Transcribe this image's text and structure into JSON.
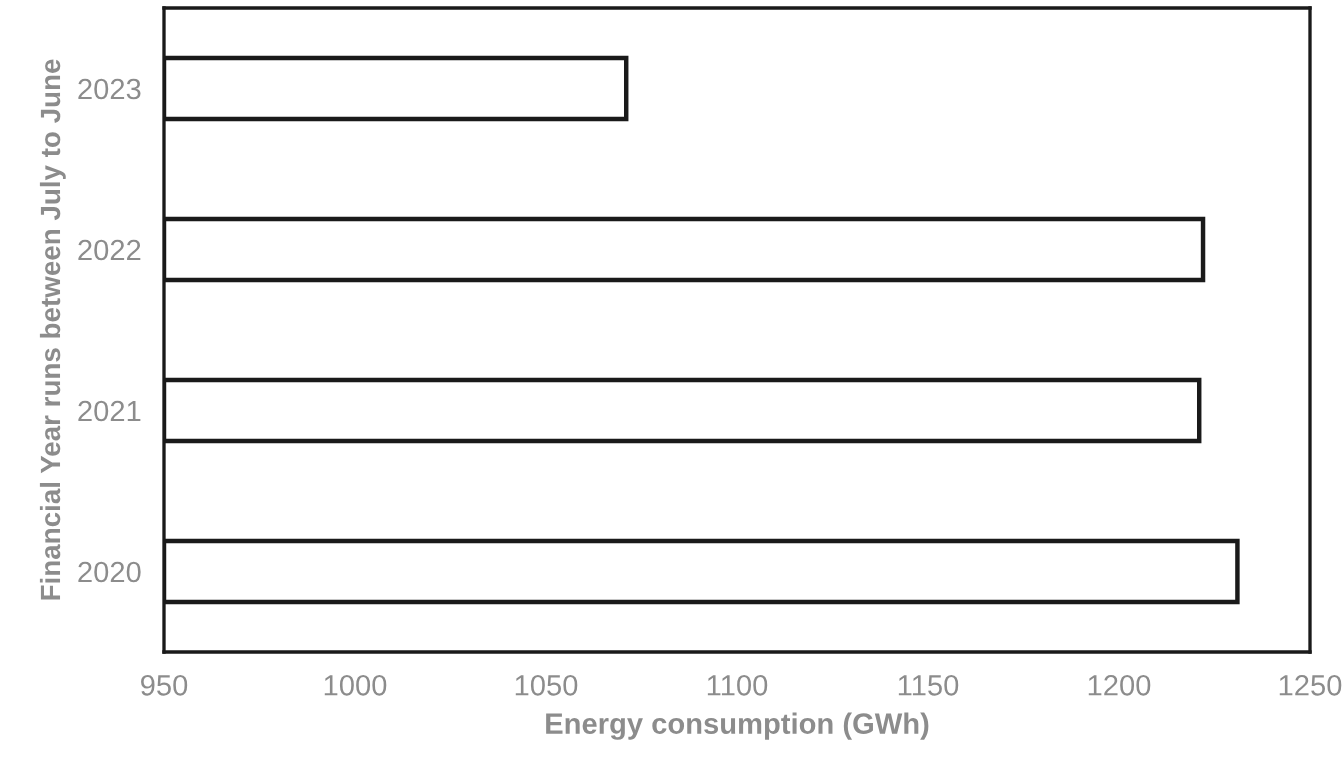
{
  "chart_data": {
    "type": "bar",
    "orientation": "horizontal",
    "xlabel": "Energy consumption (GWh)",
    "ylabel": "Financial Year runs between July to June",
    "categories": [
      "2023",
      "2022",
      "2021",
      "2020"
    ],
    "values": [
      1071,
      1222,
      1221,
      1231
    ],
    "color": "#ffffff",
    "xlim": [
      950,
      1250
    ],
    "xticks": [
      950,
      1000,
      1050,
      1100,
      1150,
      1200,
      1250
    ],
    "grid": false
  }
}
